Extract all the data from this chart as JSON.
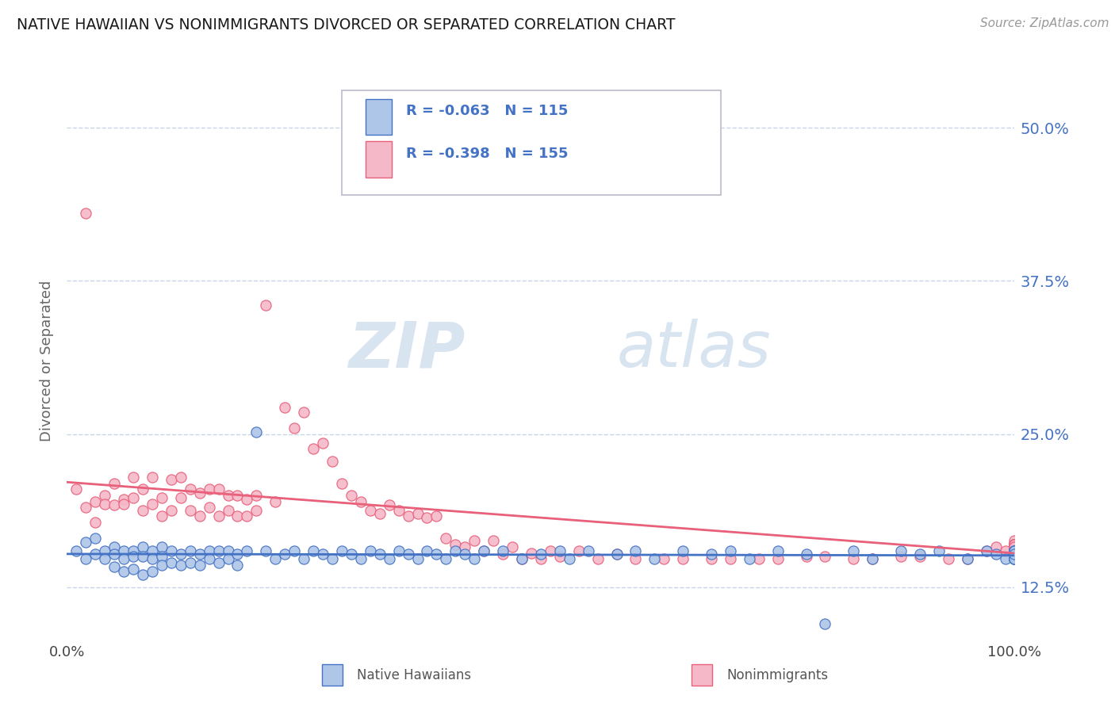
{
  "title": "NATIVE HAWAIIAN VS NONIMMIGRANTS DIVORCED OR SEPARATED CORRELATION CHART",
  "source": "Source: ZipAtlas.com",
  "ylabel_label": "Divorced or Separated",
  "legend_labels": [
    "Native Hawaiians",
    "Nonimmigrants"
  ],
  "blue_R": -0.063,
  "blue_N": 115,
  "pink_R": -0.398,
  "pink_N": 155,
  "blue_color": "#aec6e8",
  "pink_color": "#f5b8c8",
  "blue_line_color": "#4472C4",
  "pink_line_color": "#e8607a",
  "bg_color": "#ffffff",
  "grid_color": "#c8d4e8",
  "xlim": [
    0.0,
    1.0
  ],
  "ylim": [
    0.085,
    0.535
  ],
  "ytick_vals": [
    0.125,
    0.25,
    0.375,
    0.5
  ],
  "ytick_labels": [
    "12.5%",
    "25.0%",
    "37.5%",
    "50.0%"
  ],
  "blue_scatter_x": [
    0.01,
    0.02,
    0.02,
    0.03,
    0.03,
    0.04,
    0.04,
    0.05,
    0.05,
    0.05,
    0.06,
    0.06,
    0.06,
    0.07,
    0.07,
    0.07,
    0.08,
    0.08,
    0.08,
    0.09,
    0.09,
    0.09,
    0.1,
    0.1,
    0.1,
    0.11,
    0.11,
    0.12,
    0.12,
    0.13,
    0.13,
    0.14,
    0.14,
    0.15,
    0.15,
    0.16,
    0.16,
    0.17,
    0.17,
    0.18,
    0.18,
    0.19,
    0.2,
    0.21,
    0.22,
    0.23,
    0.24,
    0.25,
    0.26,
    0.27,
    0.28,
    0.29,
    0.3,
    0.31,
    0.32,
    0.33,
    0.34,
    0.35,
    0.36,
    0.37,
    0.38,
    0.39,
    0.4,
    0.41,
    0.42,
    0.43,
    0.44,
    0.46,
    0.48,
    0.5,
    0.52,
    0.53,
    0.55,
    0.58,
    0.6,
    0.62,
    0.65,
    0.68,
    0.7,
    0.72,
    0.75,
    0.78,
    0.8,
    0.83,
    0.85,
    0.88,
    0.9,
    0.92,
    0.95,
    0.97,
    0.98,
    0.99,
    1.0,
    1.0,
    1.0,
    1.0,
    1.0,
    1.0,
    1.0,
    1.0,
    1.0,
    1.0,
    1.0,
    1.0,
    1.0,
    1.0,
    1.0,
    1.0,
    1.0,
    1.0,
    1.0,
    1.0,
    1.0,
    1.0,
    1.0
  ],
  "blue_scatter_y": [
    0.155,
    0.148,
    0.162,
    0.152,
    0.165,
    0.155,
    0.148,
    0.158,
    0.152,
    0.142,
    0.155,
    0.148,
    0.138,
    0.155,
    0.15,
    0.14,
    0.158,
    0.15,
    0.135,
    0.155,
    0.148,
    0.138,
    0.158,
    0.15,
    0.143,
    0.155,
    0.145,
    0.152,
    0.143,
    0.155,
    0.145,
    0.152,
    0.143,
    0.155,
    0.148,
    0.155,
    0.145,
    0.155,
    0.148,
    0.152,
    0.143,
    0.155,
    0.252,
    0.155,
    0.148,
    0.152,
    0.155,
    0.148,
    0.155,
    0.152,
    0.148,
    0.155,
    0.152,
    0.148,
    0.155,
    0.152,
    0.148,
    0.155,
    0.152,
    0.148,
    0.155,
    0.152,
    0.148,
    0.155,
    0.152,
    0.148,
    0.155,
    0.155,
    0.148,
    0.152,
    0.155,
    0.148,
    0.155,
    0.152,
    0.155,
    0.148,
    0.155,
    0.152,
    0.155,
    0.148,
    0.155,
    0.152,
    0.095,
    0.155,
    0.148,
    0.155,
    0.152,
    0.155,
    0.148,
    0.155,
    0.152,
    0.148,
    0.155,
    0.152,
    0.148,
    0.155,
    0.152,
    0.148,
    0.155,
    0.152,
    0.148,
    0.155,
    0.152,
    0.148,
    0.155,
    0.152,
    0.148,
    0.155,
    0.152,
    0.148,
    0.155,
    0.152,
    0.148,
    0.155,
    0.152
  ],
  "pink_scatter_x": [
    0.01,
    0.02,
    0.02,
    0.03,
    0.03,
    0.04,
    0.04,
    0.05,
    0.05,
    0.06,
    0.06,
    0.07,
    0.07,
    0.08,
    0.08,
    0.09,
    0.09,
    0.1,
    0.1,
    0.11,
    0.11,
    0.12,
    0.12,
    0.13,
    0.13,
    0.14,
    0.14,
    0.15,
    0.15,
    0.16,
    0.16,
    0.17,
    0.17,
    0.18,
    0.18,
    0.19,
    0.19,
    0.2,
    0.2,
    0.21,
    0.22,
    0.23,
    0.24,
    0.25,
    0.26,
    0.27,
    0.28,
    0.29,
    0.3,
    0.31,
    0.32,
    0.33,
    0.34,
    0.35,
    0.36,
    0.37,
    0.38,
    0.39,
    0.4,
    0.41,
    0.42,
    0.43,
    0.44,
    0.45,
    0.46,
    0.47,
    0.48,
    0.49,
    0.5,
    0.51,
    0.52,
    0.54,
    0.56,
    0.58,
    0.6,
    0.63,
    0.65,
    0.68,
    0.7,
    0.73,
    0.75,
    0.78,
    0.8,
    0.83,
    0.85,
    0.88,
    0.9,
    0.93,
    0.95,
    0.97,
    0.98,
    0.99,
    1.0,
    1.0,
    1.0,
    1.0,
    1.0,
    1.0,
    1.0,
    1.0,
    1.0,
    1.0,
    1.0,
    1.0,
    1.0,
    1.0,
    1.0,
    1.0,
    1.0,
    1.0,
    1.0,
    1.0,
    1.0,
    1.0,
    1.0,
    1.0,
    1.0,
    1.0,
    1.0,
    1.0,
    1.0,
    1.0,
    1.0,
    1.0,
    1.0,
    1.0,
    1.0,
    1.0,
    1.0,
    1.0,
    1.0,
    1.0,
    1.0,
    1.0,
    1.0,
    1.0,
    1.0,
    1.0,
    1.0,
    1.0,
    1.0,
    1.0,
    1.0,
    1.0,
    1.0,
    1.0,
    1.0,
    1.0,
    1.0,
    1.0,
    1.0,
    1.0,
    1.0,
    1.0,
    1.0
  ],
  "pink_scatter_y": [
    0.205,
    0.43,
    0.19,
    0.195,
    0.178,
    0.2,
    0.193,
    0.192,
    0.21,
    0.197,
    0.193,
    0.215,
    0.198,
    0.205,
    0.188,
    0.215,
    0.193,
    0.198,
    0.183,
    0.213,
    0.188,
    0.215,
    0.198,
    0.205,
    0.188,
    0.202,
    0.183,
    0.205,
    0.19,
    0.205,
    0.183,
    0.2,
    0.188,
    0.2,
    0.183,
    0.197,
    0.183,
    0.2,
    0.188,
    0.355,
    0.195,
    0.272,
    0.255,
    0.268,
    0.238,
    0.243,
    0.228,
    0.21,
    0.2,
    0.195,
    0.188,
    0.185,
    0.192,
    0.188,
    0.183,
    0.185,
    0.182,
    0.183,
    0.165,
    0.16,
    0.158,
    0.163,
    0.155,
    0.163,
    0.152,
    0.158,
    0.148,
    0.153,
    0.148,
    0.155,
    0.15,
    0.155,
    0.148,
    0.152,
    0.148,
    0.148,
    0.148,
    0.148,
    0.148,
    0.148,
    0.148,
    0.15,
    0.15,
    0.148,
    0.148,
    0.15,
    0.15,
    0.148,
    0.148,
    0.155,
    0.158,
    0.155,
    0.16,
    0.158,
    0.155,
    0.16,
    0.158,
    0.155,
    0.163,
    0.16,
    0.158,
    0.155,
    0.16,
    0.158,
    0.155,
    0.16,
    0.158,
    0.155,
    0.16,
    0.158,
    0.155,
    0.16,
    0.158,
    0.155,
    0.16,
    0.158,
    0.155,
    0.16,
    0.158,
    0.155,
    0.16,
    0.158,
    0.155,
    0.16,
    0.158,
    0.155,
    0.16,
    0.158,
    0.155,
    0.16,
    0.158,
    0.155,
    0.16,
    0.158,
    0.155,
    0.16,
    0.158,
    0.155,
    0.16,
    0.158,
    0.155,
    0.16,
    0.158,
    0.155,
    0.16,
    0.158,
    0.155,
    0.16,
    0.158,
    0.155,
    0.16,
    0.158,
    0.155,
    0.16,
    0.158
  ]
}
